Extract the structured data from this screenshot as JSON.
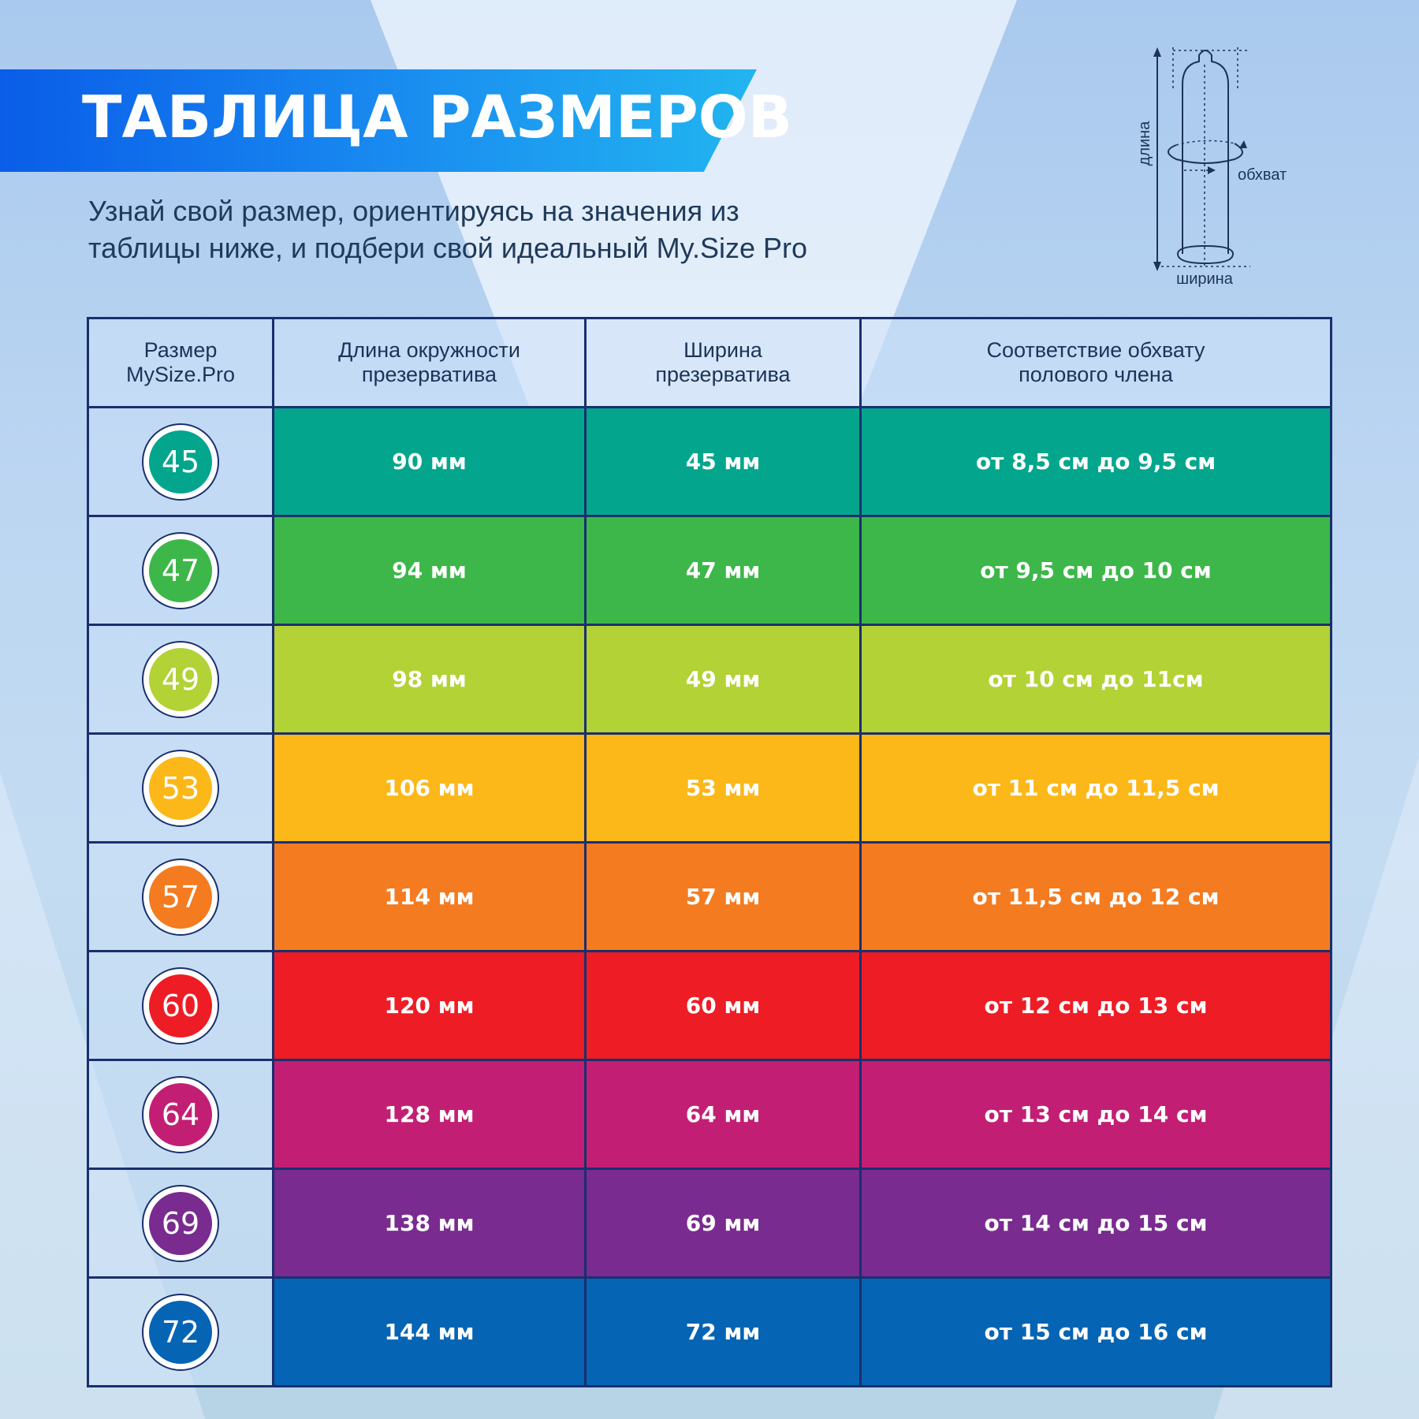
{
  "title": "ТАБЛИЦА РАЗМЕРОВ",
  "subtitle": {
    "line1": "Узнай свой размер, ориентируясь на значения из",
    "line2": "таблицы ниже, и подбери свой идеальный My.Size Pro"
  },
  "diagram": {
    "length_label": "длина",
    "girth_label": "обхват",
    "width_label": "ширина"
  },
  "table": {
    "headers": [
      {
        "line1": "Размер",
        "line2": "MySize.Pro"
      },
      {
        "line1": "Длина окружности",
        "line2": "презерватива"
      },
      {
        "line1": "Ширина",
        "line2": "презерватива"
      },
      {
        "line1": "Соответствие обхвату",
        "line2": "полового члена"
      }
    ],
    "rows": [
      {
        "size": "45",
        "circumference": "90 мм",
        "width": "45 мм",
        "girth": "от 8,5 см до 9,5 см",
        "color": "#03a68c"
      },
      {
        "size": "47",
        "circumference": "94 мм",
        "width": "47 мм",
        "girth": "от 9,5 см до 10 см",
        "color": "#3db74a"
      },
      {
        "size": "49",
        "circumference": "98 мм",
        "width": "49 мм",
        "girth": "от 10 см до 11см",
        "color": "#b2d235"
      },
      {
        "size": "53",
        "circumference": "106 мм",
        "width": "53 мм",
        "girth": "от 11 см до 11,5 см",
        "color": "#fcb718"
      },
      {
        "size": "57",
        "circumference": "114 мм",
        "width": "57 мм",
        "girth": "от 11,5 см до 12 см",
        "color": "#f47b20"
      },
      {
        "size": "60",
        "circumference": "120 мм",
        "width": "60 мм",
        "girth": "от 12 см до 13 см",
        "color": "#ee1c25"
      },
      {
        "size": "64",
        "circumference": "128 мм",
        "width": "64 мм",
        "girth": "от 13 см до 14 см",
        "color": "#c21f74"
      },
      {
        "size": "69",
        "circumference": "138 мм",
        "width": "69 мм",
        "girth": "от 14 см до 15 см",
        "color": "#792b90"
      },
      {
        "size": "72",
        "circumference": "144 мм",
        "width": "72 мм",
        "girth": "от 15 см до 16 см",
        "color": "#0564b4"
      }
    ]
  }
}
